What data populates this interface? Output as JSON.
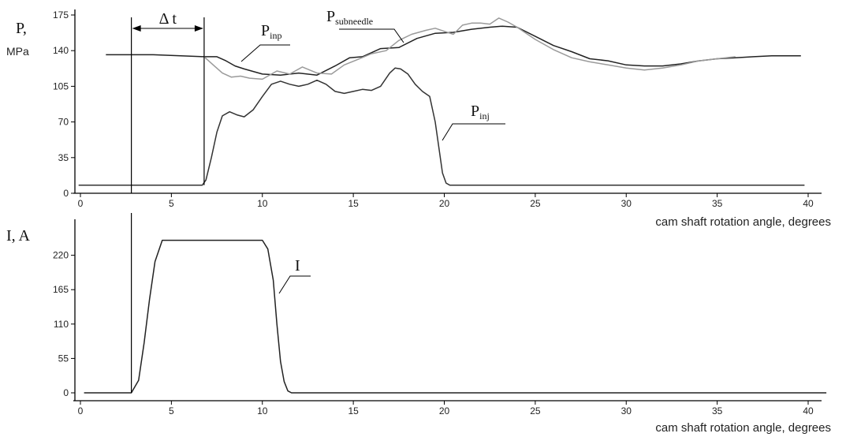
{
  "colors": {
    "background": "#ffffff",
    "axis": "#000000",
    "p_inp": "#222222",
    "p_subneedle": "#9a9a9a",
    "p_inj": "#333333",
    "current": "#222222"
  },
  "chart_data": [
    {
      "type": "line",
      "ylabel_main": "P,",
      "ylabel_unit": "MPa",
      "xlabel": "cam shaft rotation angle, degrees",
      "xlim": [
        0,
        40
      ],
      "ylim": [
        0,
        175
      ],
      "xticks": [
        0,
        5,
        10,
        15,
        20,
        25,
        30,
        35,
        40
      ],
      "yticks": [
        0,
        35,
        70,
        105,
        140,
        175
      ],
      "delta_label": "Δ t",
      "delta_range": [
        2.8,
        6.8
      ],
      "grid": false,
      "series": [
        {
          "name": "P_inp",
          "label_main": "P",
          "label_sub": "inp",
          "x": [
            1.4,
            4,
            6.8,
            7.5,
            8,
            8.5,
            9,
            10,
            11,
            12,
            13,
            14,
            14.8,
            15.5,
            16.5,
            17.5,
            18.5,
            19.5,
            20.5,
            21.5,
            22.5,
            23.2,
            24,
            25,
            26,
            27,
            28,
            29,
            30,
            31,
            32,
            33,
            34,
            35,
            36,
            37,
            38,
            39,
            39.6
          ],
          "y": [
            136,
            136,
            134,
            134,
            130,
            125,
            122,
            117,
            116,
            118,
            116,
            125,
            133,
            134,
            142,
            143,
            152,
            157,
            158,
            161,
            163,
            164,
            163,
            154,
            145,
            139,
            132,
            130,
            126,
            125,
            125,
            127,
            130,
            132,
            133,
            134,
            135,
            135,
            135
          ]
        },
        {
          "name": "P_subneedle",
          "label_main": "P",
          "label_sub": "subneedle",
          "x": [
            6.8,
            7.3,
            7.8,
            8.3,
            8.8,
            9.3,
            10,
            10.8,
            11.5,
            12.2,
            13,
            13.8,
            14.5,
            15.2,
            16,
            16.8,
            17.5,
            18.2,
            19,
            19.5,
            20,
            20.5,
            21,
            21.5,
            22,
            22.5,
            23,
            23.5,
            24,
            25,
            26,
            27,
            28,
            29,
            30,
            31,
            32,
            33,
            34,
            35,
            36
          ],
          "y": [
            134,
            126,
            118,
            114,
            115,
            113,
            112,
            120,
            117,
            124,
            118,
            117,
            126,
            131,
            137,
            140,
            150,
            156,
            160,
            162,
            159,
            156,
            165,
            167,
            167,
            166,
            172,
            168,
            163,
            151,
            141,
            133,
            129,
            126,
            123,
            121,
            123,
            126,
            130,
            132,
            134
          ]
        },
        {
          "name": "P_inj",
          "label_main": "P",
          "label_sub": "inj",
          "x": [
            -0.1,
            3,
            6.7,
            6.9,
            7.2,
            7.5,
            7.8,
            8.2,
            8.6,
            9,
            9.5,
            10,
            10.5,
            11,
            11.5,
            12,
            12.5,
            13,
            13.5,
            14,
            14.5,
            15,
            15.5,
            16,
            16.5,
            17,
            17.3,
            17.6,
            18,
            18.4,
            18.8,
            19.2,
            19.5,
            19.7,
            19.9,
            20.1,
            20.3,
            20.5,
            21,
            25,
            30,
            35,
            39.8
          ],
          "y": [
            8,
            8,
            8,
            13,
            35,
            60,
            76,
            80,
            77,
            75,
            82,
            95,
            107,
            110,
            107,
            105,
            107,
            111,
            107,
            100,
            98,
            100,
            102,
            101,
            105,
            118,
            123,
            122,
            117,
            107,
            100,
            95,
            70,
            45,
            20,
            10,
            8,
            8,
            8,
            8,
            8,
            8,
            8
          ]
        }
      ],
      "annotations": []
    },
    {
      "type": "line",
      "ylabel_main": "I, A",
      "xlabel": "cam shaft rotation angle, degrees",
      "xlim": [
        0,
        40
      ],
      "ylim": [
        0,
        270
      ],
      "xticks": [
        0,
        5,
        10,
        15,
        20,
        25,
        30,
        35,
        40
      ],
      "yticks": [
        0,
        55,
        110,
        165,
        220
      ],
      "grid": false,
      "series": [
        {
          "name": "I",
          "label_main": "I",
          "x": [
            0.2,
            2.8,
            2.9,
            3.2,
            3.5,
            3.8,
            4.1,
            4.5,
            5,
            10,
            10.3,
            10.6,
            10.8,
            11,
            11.2,
            11.4,
            11.6,
            12,
            20,
            30,
            41
          ],
          "y": [
            0,
            0,
            5,
            20,
            80,
            150,
            210,
            244,
            244,
            244,
            230,
            180,
            110,
            50,
            18,
            3,
            0,
            0,
            0,
            0,
            0
          ]
        }
      ]
    }
  ]
}
